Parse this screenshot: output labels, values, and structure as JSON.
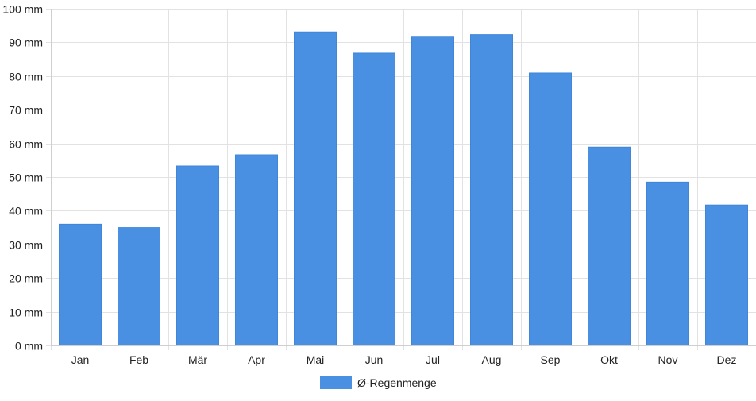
{
  "chart_data": {
    "type": "bar",
    "categories": [
      "Jan",
      "Feb",
      "Mär",
      "Apr",
      "Mai",
      "Jun",
      "Jul",
      "Aug",
      "Sep",
      "Okt",
      "Nov",
      "Dez"
    ],
    "series": [
      {
        "name": "Ø-Regenmenge",
        "values": [
          36,
          35,
          53.3,
          56.6,
          93.1,
          86.8,
          91.8,
          92.3,
          80.9,
          58.9,
          48.5,
          41.7
        ],
        "color": "#4a90e2"
      }
    ],
    "y_unit": "mm",
    "ylim": [
      0,
      100
    ],
    "y_ticks": [
      0,
      10,
      20,
      30,
      40,
      50,
      60,
      70,
      80,
      90,
      100
    ],
    "grid": true,
    "legend_position": "bottom-center"
  }
}
